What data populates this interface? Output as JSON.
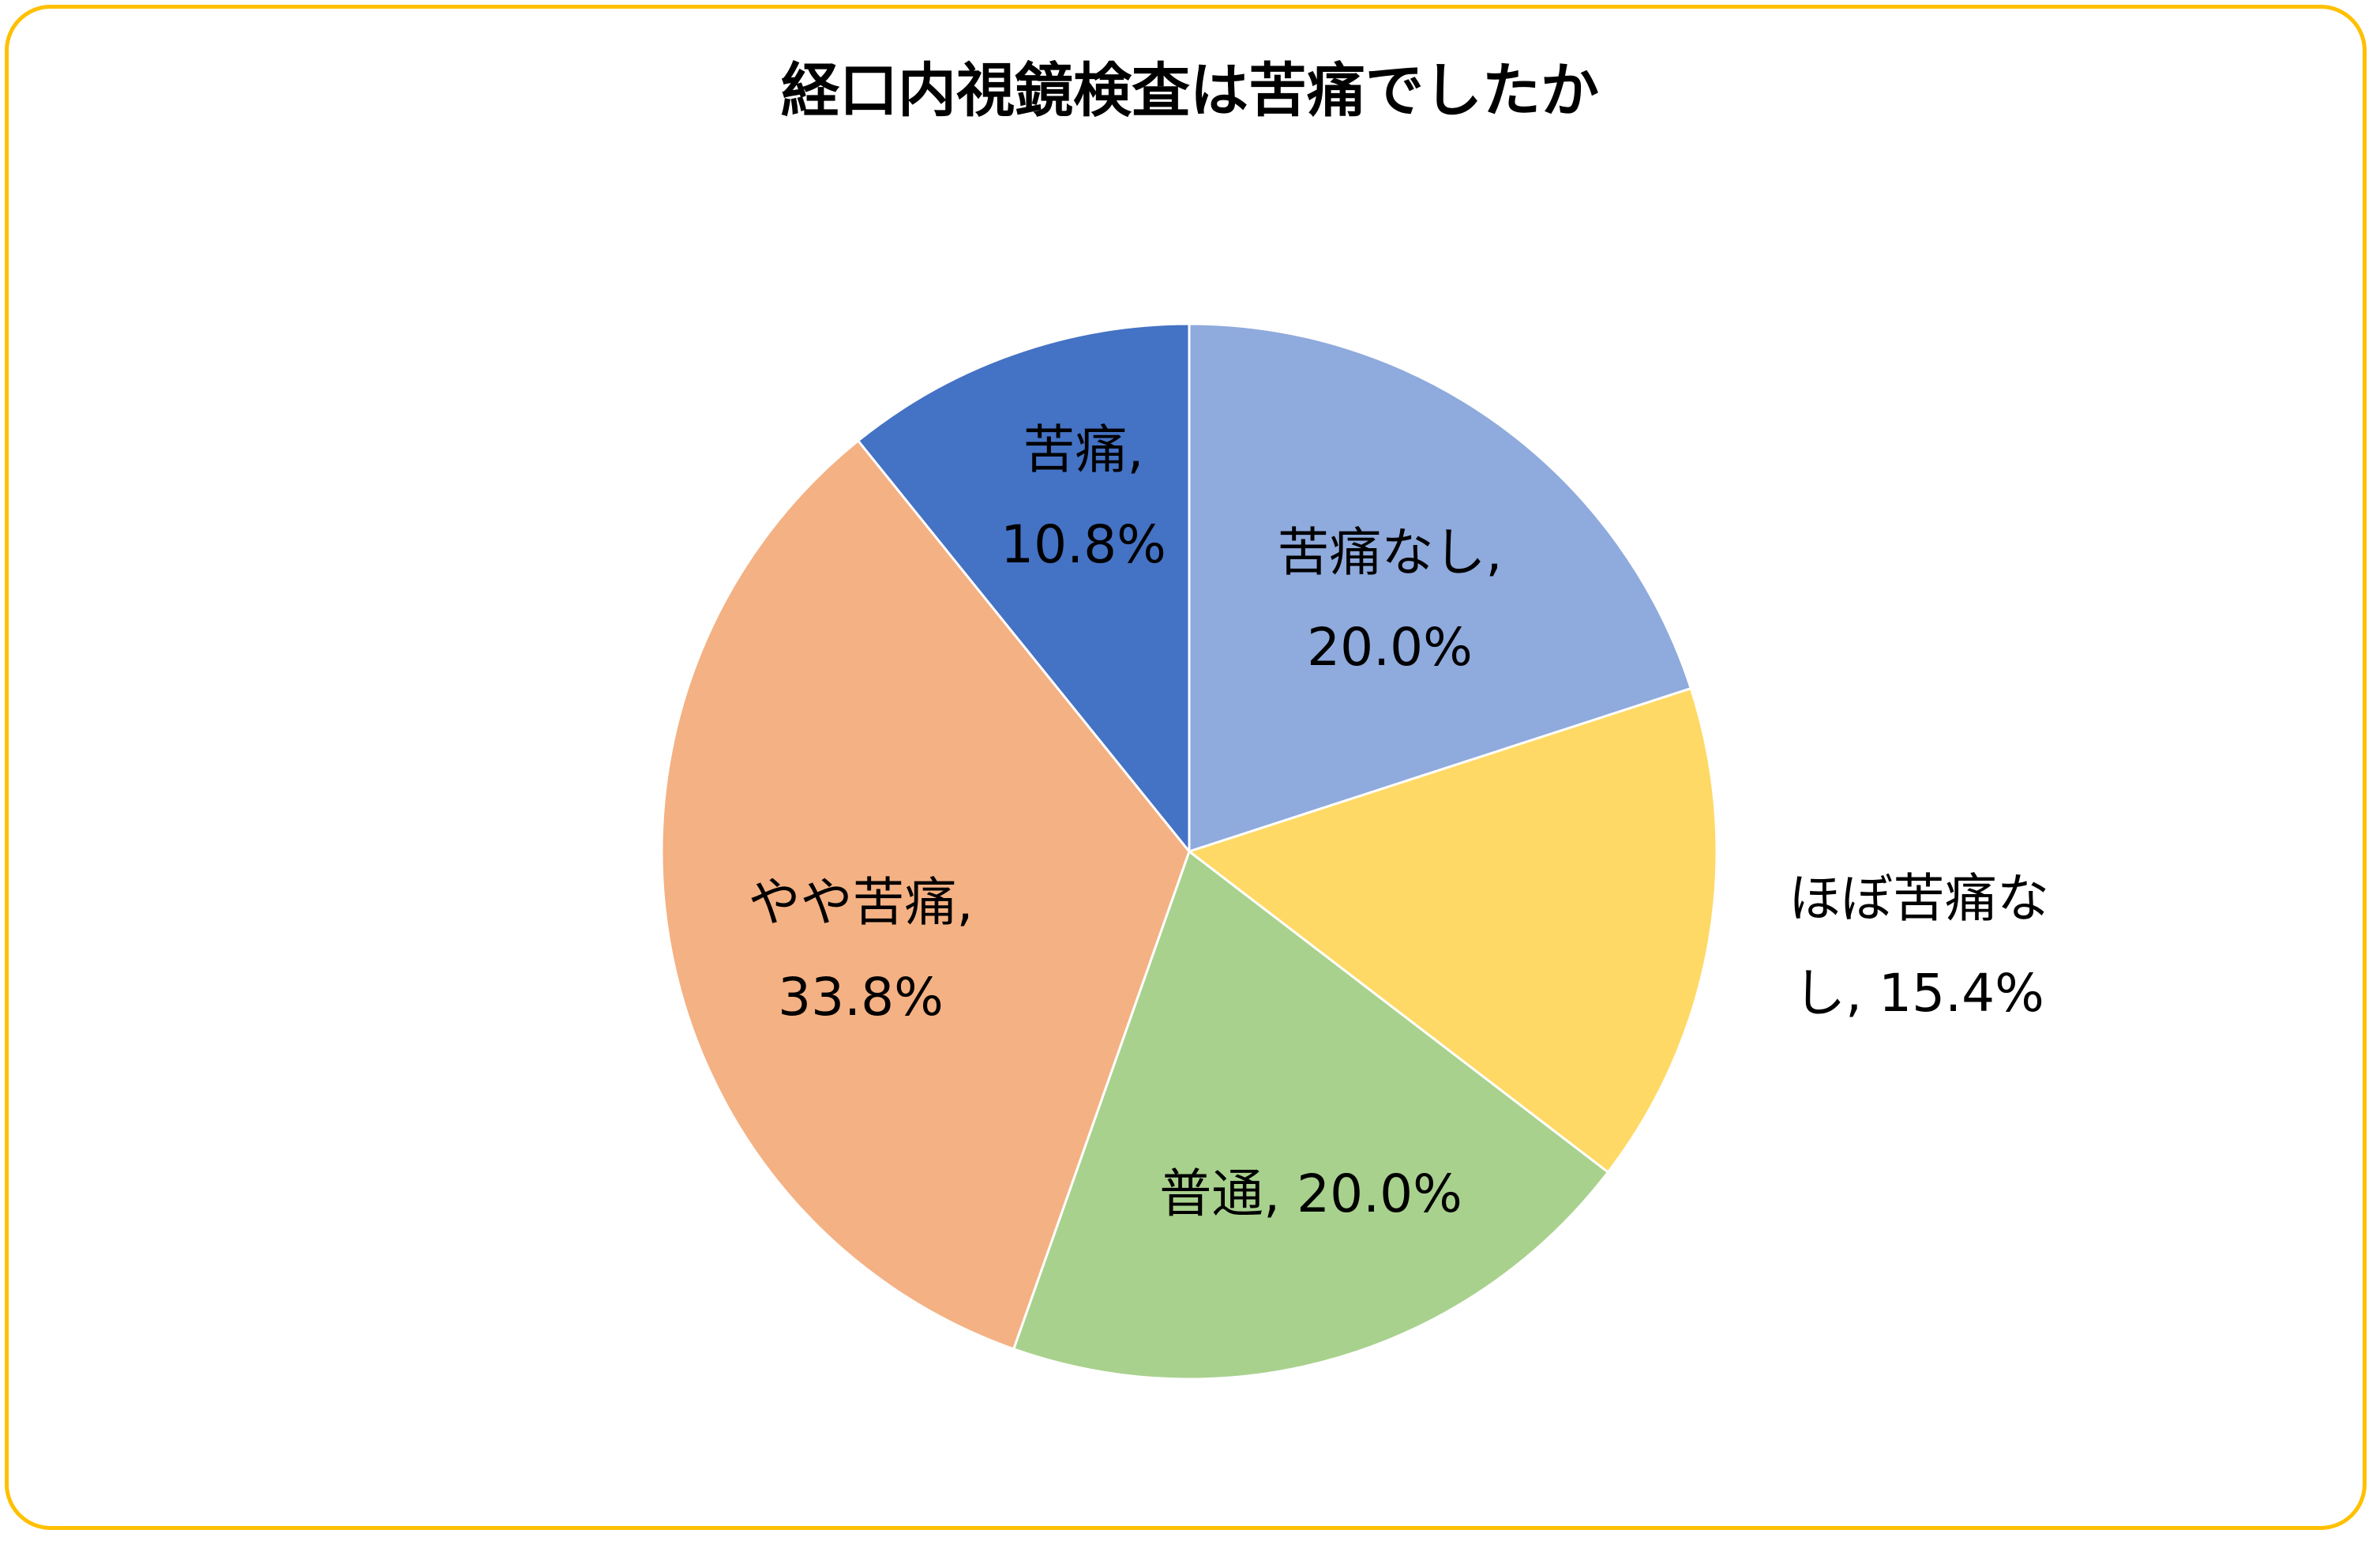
{
  "chart_data": {
    "type": "pie",
    "title": "経口内視鏡検査は苦痛でしたか",
    "start_angle_deg": 0,
    "direction": "clockwise",
    "slices": [
      {
        "category": "苦痛なし",
        "value": 20.0,
        "label_line1": "苦痛なし,",
        "label_line2": "20.0%",
        "color": "#8FAADC"
      },
      {
        "category": "ほぼ苦痛なし",
        "value": 15.4,
        "label_line1": "ほぼ苦痛な",
        "label_line2": "し, 15.4%",
        "color": "#FFD966"
      },
      {
        "category": "普通",
        "value": 20.0,
        "label_line1": "普通, 20.0%",
        "label_line2": "",
        "color": "#A9D18E"
      },
      {
        "category": "やや苦痛",
        "value": 33.8,
        "label_line1": "やや苦痛,",
        "label_line2": "33.8%",
        "color": "#F4B183"
      },
      {
        "category": "苦痛",
        "value": 10.8,
        "label_line1": "苦痛,",
        "label_line2": "10.8%",
        "color": "#4472C4"
      }
    ]
  },
  "frame_color": "#FFC000"
}
